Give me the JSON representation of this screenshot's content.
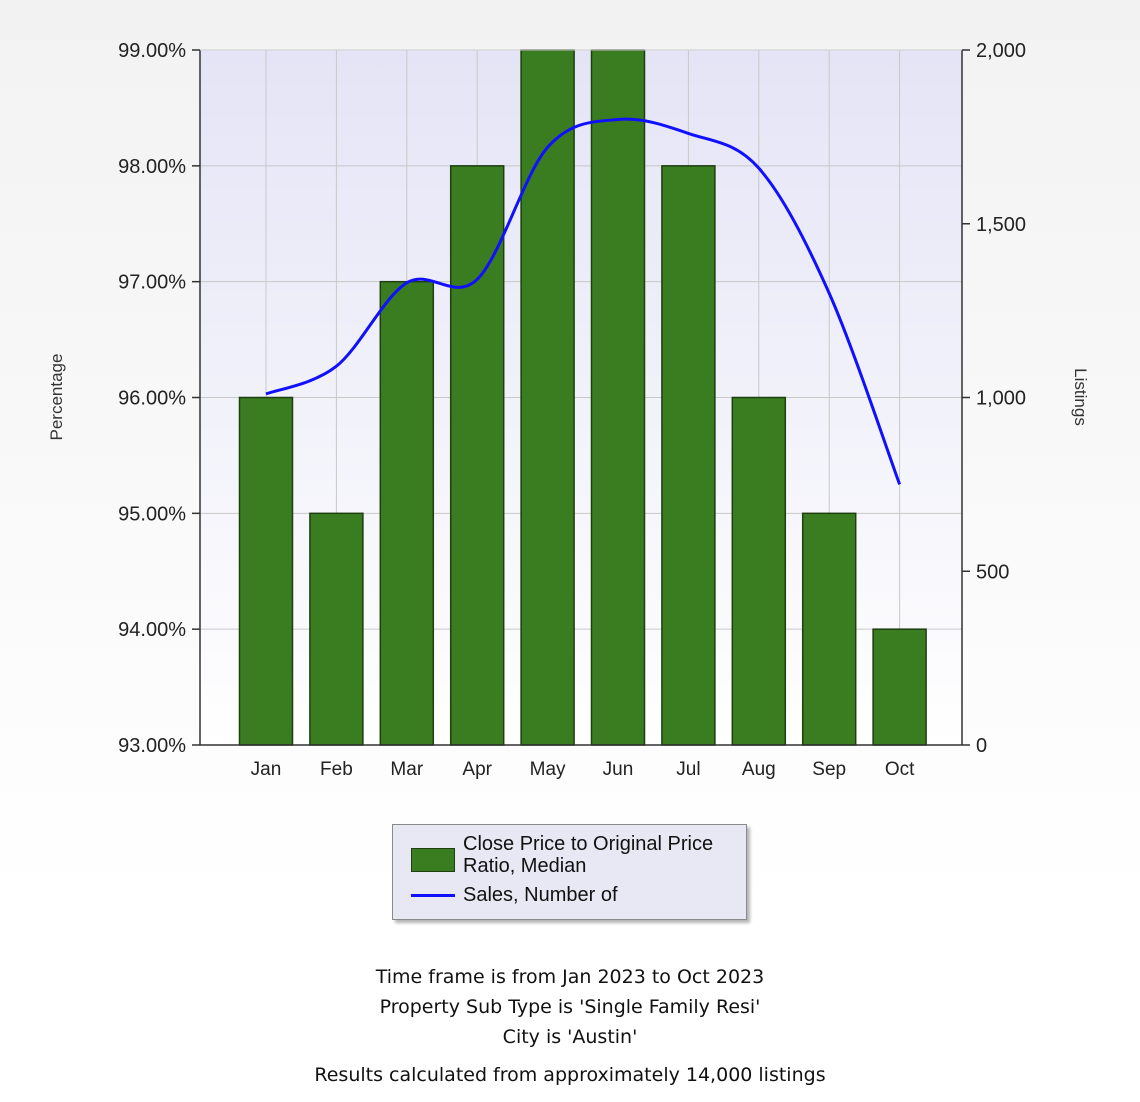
{
  "chart_data": {
    "type": "bar",
    "categories": [
      "Jan",
      "Feb",
      "Mar",
      "Apr",
      "May",
      "Jun",
      "Jul",
      "Aug",
      "Sep",
      "Oct"
    ],
    "series": [
      {
        "name": "Close Price to Original Price Ratio, Median",
        "type": "bar",
        "axis": "left",
        "values": [
          96.0,
          95.0,
          97.0,
          98.0,
          99.0,
          99.0,
          98.0,
          96.0,
          95.0,
          94.0
        ]
      },
      {
        "name": "Sales, Number of",
        "type": "line",
        "axis": "right",
        "values": [
          1010,
          1090,
          1330,
          1340,
          1720,
          1800,
          1760,
          1660,
          1300,
          750
        ]
      }
    ],
    "ylabel_left": "Percentage",
    "ylabel_right": "Listings",
    "ylim_left": [
      93,
      99
    ],
    "ylim_right": [
      0,
      2000
    ],
    "yticks_left": [
      "93.00%",
      "94.00%",
      "95.00%",
      "96.00%",
      "97.00%",
      "98.00%",
      "99.00%"
    ],
    "yticks_right": [
      "0",
      "500",
      "1,000",
      "1,500",
      "2,000"
    ],
    "grid": true,
    "legend": "bottom-center"
  },
  "colors": {
    "bar_fill": "#3a7d20",
    "bar_edge": "#1e3f10",
    "line": "#1010ff",
    "plot_bg_top": "#e4e4f6",
    "plot_bg_bottom": "#ffffff",
    "grid": "#c8c8c8"
  },
  "legend": {
    "bar_label": "Close Price to Original Price Ratio, Median",
    "line_label": "Sales, Number of"
  },
  "footer": {
    "line1": "Time frame is from Jan 2023 to Oct 2023",
    "line2": "Property Sub Type is 'Single Family Resi'",
    "line3": "City is 'Austin'",
    "line4": "Results calculated from approximately 14,000 listings"
  }
}
